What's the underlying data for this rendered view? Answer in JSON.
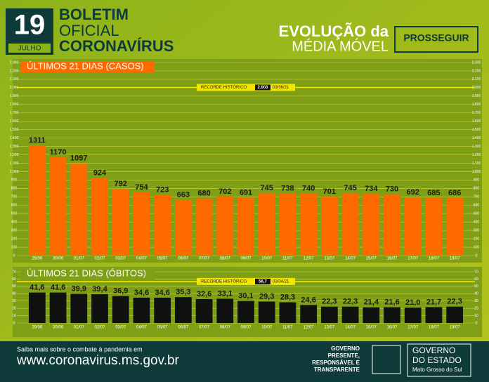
{
  "header": {
    "day": "19",
    "month": "JULHO",
    "line1": "BOLETIM",
    "line2": "OFICIAL",
    "line3": "CORONAVÍRUS",
    "right1": "EVOLUÇÃO da",
    "right2": "MÉDIA MÓVEL",
    "logo": "PROSSEGUIR"
  },
  "chart_data": [
    {
      "type": "bar",
      "title": "ÚLTIMOS 21 DIAS (CASOS)",
      "color": "#ff6a00",
      "grid": true,
      "categories": [
        "29/06",
        "30/06",
        "01/07",
        "02/07",
        "03/07",
        "04/07",
        "05/07",
        "06/07",
        "07/07",
        "08/07",
        "09/07",
        "10/07",
        "11/07",
        "12/07",
        "13/07",
        "14/07",
        "15/07",
        "16/07",
        "17/07",
        "18/07",
        "19/07"
      ],
      "values": [
        1311,
        1170,
        1097,
        924,
        792,
        754,
        723,
        663,
        680,
        702,
        691,
        745,
        738,
        740,
        701,
        745,
        734,
        730,
        692,
        685,
        686
      ],
      "ylim": [
        0,
        2300
      ],
      "yticks": [
        0,
        100,
        200,
        300,
        400,
        500,
        600,
        700,
        800,
        900,
        {
          "value": 1000,
          "label": "1.000"
        },
        {
          "value": 1100,
          "label": "1.100"
        },
        {
          "value": 1200,
          "label": "1.200"
        },
        {
          "value": 1300,
          "label": "1.300"
        },
        {
          "value": 1400,
          "label": "1.400"
        },
        {
          "value": 1500,
          "label": "1.500"
        },
        {
          "value": 1600,
          "label": "1.600"
        },
        {
          "value": 1700,
          "label": "1.700"
        },
        {
          "value": 1800,
          "label": "1.800"
        },
        {
          "value": 1900,
          "label": "1.900"
        },
        {
          "value": 2000,
          "label": "2.000"
        },
        {
          "value": 2100,
          "label": "2.100"
        },
        {
          "value": 2200,
          "label": "2.200"
        },
        {
          "value": 2300,
          "label": "2.300"
        }
      ],
      "record": {
        "label": "RECORDE HISTÓRICO",
        "value": 2003,
        "value_label": "2.003",
        "date": "03/06/21"
      }
    },
    {
      "type": "bar",
      "title": "ÚLTIMOS 21 DIAS (ÓBITOS)",
      "color": "#111111",
      "grid": true,
      "categories": [
        "29/06",
        "30/06",
        "01/07",
        "02/07",
        "03/07",
        "04/07",
        "05/07",
        "06/07",
        "07/07",
        "08/07",
        "09/07",
        "10/07",
        "11/07",
        "12/07",
        "13/07",
        "14/07",
        "15/07",
        "16/07",
        "17/07",
        "18/07",
        "19/07"
      ],
      "values": [
        41.6,
        41.6,
        39.9,
        39.4,
        36.9,
        34.6,
        34.6,
        35.3,
        32.6,
        33.1,
        30.1,
        29.3,
        28.3,
        24.6,
        22.3,
        22.3,
        21.4,
        21.6,
        21.0,
        21.7,
        22.3
      ],
      "value_labels": [
        "41,6",
        "41,6",
        "39,9",
        "39,4",
        "36,9",
        "34,6",
        "34,6",
        "35,3",
        "32,6",
        "33,1",
        "30,1",
        "29,3",
        "28,3",
        "24,6",
        "22,3",
        "22,3",
        "21,4",
        "21,6",
        "21,0",
        "21,7",
        "22,3"
      ],
      "ylim": [
        0,
        70
      ],
      "yticks": [
        0,
        10,
        20,
        30,
        40,
        50,
        60,
        70
      ],
      "record": {
        "label": "RECORDE HISTÓRICO",
        "value": 56.7,
        "value_label": "56,7",
        "date": "03/04/21"
      }
    }
  ],
  "footer": {
    "note": "Saiba mais sobre o combate à pandemia em",
    "url": "www.coronavirus.ms.gov.br",
    "slogan1": "GOVERNO",
    "slogan2": "PRESENTE,",
    "slogan3": "RESPONSÁVEL E",
    "slogan4": "TRANSPARENTE",
    "gov1": "GOVERNO",
    "gov2": "DO ESTADO",
    "gov3": "Mato Grosso do Sul"
  }
}
